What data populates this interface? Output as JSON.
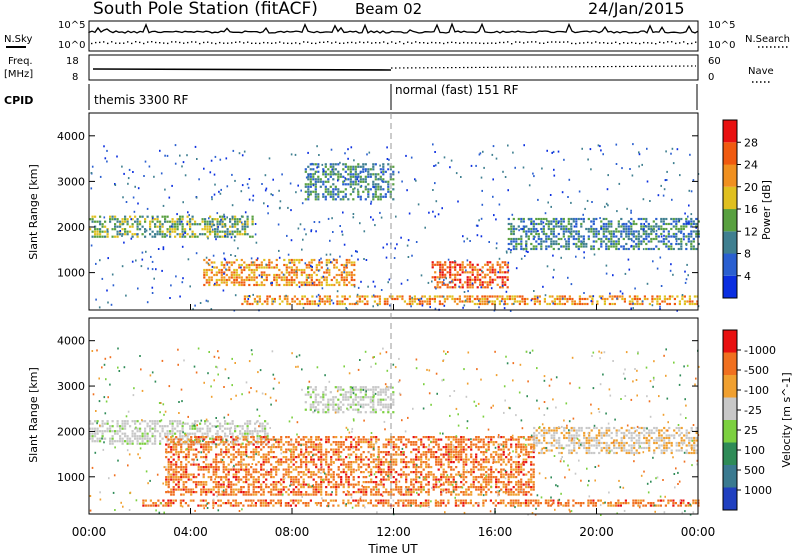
{
  "header": {
    "station": "South Pole Station (fitACF)",
    "beam": "Beam 02",
    "date": "24/Jan/2015"
  },
  "sky_panel": {
    "left_label": "N.Sky",
    "right_label": "N.Search",
    "left_ticks": [
      "10^5",
      "10^0"
    ],
    "right_ticks": [
      "10^5",
      "10^0"
    ]
  },
  "freq_panel": {
    "left_label_1": "Freq.",
    "left_label_2": "[MHz]",
    "right_label": "Nave",
    "left_ticks": [
      "18",
      "8"
    ],
    "right_ticks": [
      "60",
      "0"
    ]
  },
  "cpid": {
    "label": "CPID",
    "segments": [
      {
        "label": "themis 3300 RF",
        "start_hour": 0
      },
      {
        "label": "normal (fast) 151 RF",
        "start_hour": 12
      }
    ]
  },
  "time_axis": {
    "label": "Time UT",
    "ticks": [
      "00:00",
      "04:00",
      "08:00",
      "12:00",
      "16:00",
      "20:00",
      "00:00"
    ]
  },
  "range_axis": {
    "label": "Slant Range [km]",
    "ticks": [
      "1000",
      "2000",
      "3000",
      "4000"
    ]
  },
  "chart_data": [
    {
      "type": "heatmap",
      "title": "",
      "xlabel": "Time UT",
      "ylabel": "Slant Range [km]",
      "xlim": [
        0,
        24
      ],
      "ylim": [
        180,
        4500
      ],
      "colorbar": {
        "label": "Power [dB]",
        "ticks": [
          "4",
          "8",
          "12",
          "16",
          "20",
          "24",
          "28"
        ],
        "colors": [
          "#0a2ee0",
          "#2a5fd0",
          "#3f7f90",
          "#58a040",
          "#e0c020",
          "#f09020",
          "#f05a10",
          "#e81010"
        ]
      },
      "echo_regions": [
        {
          "t0": 0.0,
          "t1": 6.5,
          "r0": 1800,
          "r1": 2250,
          "power_db": 10
        },
        {
          "t0": 4.5,
          "t1": 10.5,
          "r0": 700,
          "r1": 1300,
          "power_db": 18
        },
        {
          "t0": 8.5,
          "t1": 12.0,
          "r0": 2600,
          "r1": 3400,
          "power_db": 9
        },
        {
          "t0": 13.5,
          "t1": 16.5,
          "r0": 700,
          "r1": 1250,
          "power_db": 24
        },
        {
          "t0": 16.5,
          "t1": 24.0,
          "r0": 1500,
          "r1": 2200,
          "power_db": 8
        },
        {
          "t0": 6.0,
          "t1": 24.0,
          "r0": 300,
          "r1": 500,
          "power_db": 20
        }
      ]
    },
    {
      "type": "heatmap",
      "title": "",
      "xlabel": "Time UT",
      "ylabel": "Slant Range [km]",
      "xlim": [
        0,
        24
      ],
      "ylim": [
        180,
        4500
      ],
      "colorbar": {
        "label": "Velocity [m s^-1]",
        "ticks": [
          "1000",
          "500",
          "100",
          "25",
          "-25",
          "-100",
          "-500",
          "-1000"
        ],
        "colors": [
          "#2040c0",
          "#3a7a90",
          "#2e8b57",
          "#7cd040",
          "#c8c8c8",
          "#f0a030",
          "#f07020",
          "#e81010"
        ]
      },
      "echo_regions": [
        {
          "t0": 0.0,
          "t1": 7.0,
          "r0": 1750,
          "r1": 2250,
          "velocity": 0
        },
        {
          "t0": 8.5,
          "t1": 12.0,
          "r0": 2400,
          "r1": 3000,
          "velocity": 0
        },
        {
          "t0": 3.0,
          "t1": 17.5,
          "r0": 600,
          "r1": 1900,
          "velocity": -300
        },
        {
          "t0": 17.5,
          "t1": 24.0,
          "r0": 1500,
          "r1": 2100,
          "velocity": -50
        },
        {
          "t0": 2.0,
          "t1": 24.0,
          "r0": 350,
          "r1": 500,
          "velocity": -200
        }
      ]
    }
  ]
}
